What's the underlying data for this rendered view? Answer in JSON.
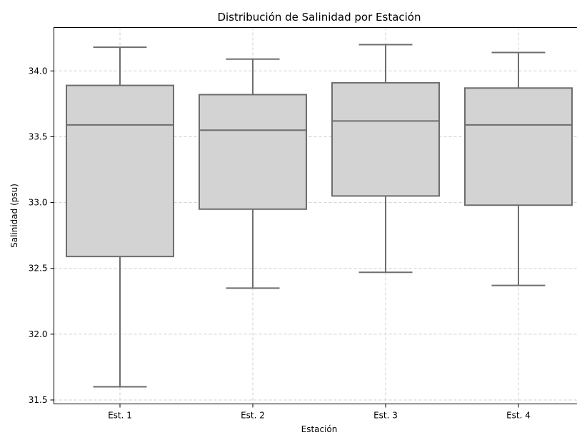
{
  "chart_data": {
    "type": "box",
    "title": "Distribución de Salinidad por Estación",
    "xlabel": "Estación",
    "ylabel": "Salinidad (psu)",
    "ylim": [
      31.47,
      34.33
    ],
    "yticks": [
      31.5,
      32.0,
      32.5,
      33.0,
      33.5,
      34.0
    ],
    "ytick_labels": [
      "31.5",
      "32.0",
      "32.5",
      "33.0",
      "33.5",
      "34.0"
    ],
    "grid": true,
    "categories": [
      "Est. 1",
      "Est. 2",
      "Est. 3",
      "Est. 4"
    ],
    "boxes": [
      {
        "label": "Est. 1",
        "whisker_low": 31.6,
        "q1": 32.59,
        "median": 33.59,
        "q3": 33.89,
        "whisker_high": 34.18
      },
      {
        "label": "Est. 2",
        "whisker_low": 32.35,
        "q1": 32.95,
        "median": 33.55,
        "q3": 33.82,
        "whisker_high": 34.09
      },
      {
        "label": "Est. 3",
        "whisker_low": 32.47,
        "q1": 33.05,
        "median": 33.62,
        "q3": 33.91,
        "whisker_high": 34.2
      },
      {
        "label": "Est. 4",
        "whisker_low": 32.37,
        "q1": 32.98,
        "median": 33.59,
        "q3": 33.87,
        "whisker_high": 34.14
      }
    ],
    "colors": {
      "box_fill": "#d3d3d3",
      "box_edge": "#6e6e6e",
      "grid": "#cfcfcf"
    }
  }
}
